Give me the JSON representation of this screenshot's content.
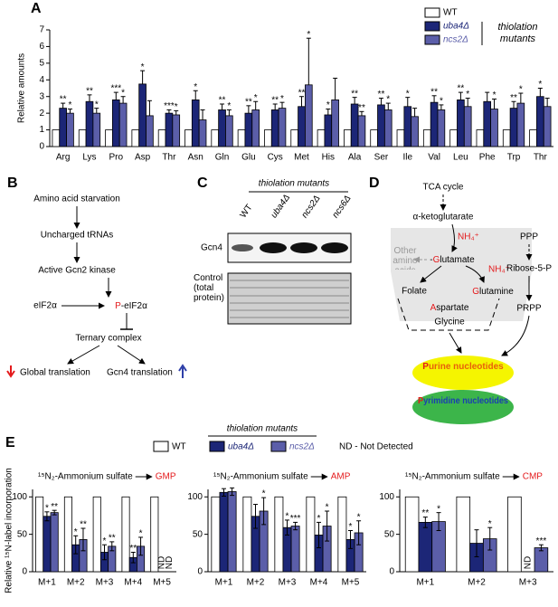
{
  "chart_data": [
    {
      "type": "bar",
      "panel_label": "A",
      "ylabel": "Relative amounts",
      "categories": [
        "Arg",
        "Lys",
        "Pro",
        "Asp",
        "Thr",
        "Asn",
        "Gln",
        "Glu",
        "Cys",
        "Met",
        "His",
        "Ala",
        "Ser",
        "Ile",
        "Val",
        "Leu",
        "Phe",
        "Trp",
        "Thr"
      ],
      "ylim": [
        0,
        7
      ],
      "yticks": [
        0,
        1,
        2,
        3,
        4,
        5,
        6,
        7
      ],
      "legend_group": "thiolation mutants",
      "series": [
        {
          "name": "WT",
          "color": "#ffffff",
          "values": [
            1,
            1,
            1,
            1,
            1,
            1,
            1,
            1,
            1,
            1,
            1,
            1,
            1,
            1,
            1,
            1,
            1,
            1,
            1
          ]
        },
        {
          "name": "uba4Δ",
          "color": "#1c2677",
          "values": [
            2.3,
            2.7,
            2.8,
            3.75,
            2.0,
            2.8,
            2.2,
            2.0,
            2.2,
            2.4,
            1.9,
            2.55,
            2.5,
            2.4,
            2.65,
            2.8,
            2.7,
            2.3,
            3.0
          ],
          "errors": [
            0.3,
            0.4,
            0.45,
            0.8,
            0.2,
            0.55,
            0.35,
            0.45,
            0.35,
            0.6,
            0.35,
            0.4,
            0.4,
            0.55,
            0.4,
            0.45,
            0.55,
            0.4,
            0.5
          ],
          "annotations": [
            "**",
            "**",
            "***",
            "*",
            "***",
            "*",
            "**",
            "**",
            "**",
            "**",
            "*",
            "**",
            "**",
            "*",
            "**",
            "**",
            null,
            "**",
            "*"
          ]
        },
        {
          "name": "ncs2Δ",
          "color": "#5b5ea9",
          "values": [
            2.0,
            2.0,
            2.6,
            1.85,
            1.9,
            1.6,
            1.85,
            2.2,
            2.3,
            3.7,
            2.8,
            1.85,
            2.2,
            1.8,
            2.2,
            2.4,
            2.25,
            2.6,
            2.4
          ],
          "errors": [
            0.25,
            0.3,
            0.4,
            0.9,
            0.25,
            0.6,
            0.35,
            0.5,
            0.35,
            2.8,
            1.3,
            0.25,
            0.4,
            0.5,
            0.3,
            0.5,
            0.6,
            0.6,
            0.5
          ],
          "annotations": [
            "*",
            "*",
            "*",
            null,
            "*",
            null,
            "*",
            "*",
            "*",
            "*",
            null,
            "**",
            "*",
            null,
            "*",
            "*",
            "*",
            "*",
            null
          ]
        }
      ]
    },
    {
      "type": "bar",
      "panel_label": "E",
      "title": "¹⁵N₂-Ammonium sulfate",
      "product": "GMP",
      "ylabel": "Relative ¹⁵N-label incorporation",
      "legend_group": "thiolation mutants",
      "note": "ND - Not Detected",
      "categories": [
        "M+1",
        "M+2",
        "M+3",
        "M+4",
        "M+5"
      ],
      "ylim": [
        0,
        110
      ],
      "yticks": [
        0,
        50,
        100
      ],
      "series": [
        {
          "name": "WT",
          "color": "#ffffff",
          "values": [
            100,
            100,
            100,
            100,
            100
          ]
        },
        {
          "name": "uba4Δ",
          "color": "#1c2677",
          "values": [
            74,
            36,
            26,
            19,
            null
          ],
          "errors": [
            6,
            12,
            10,
            7,
            null
          ],
          "annotations": [
            "*",
            "*",
            "*",
            "**",
            null
          ],
          "value_labels": [
            null,
            null,
            null,
            null,
            "ND"
          ]
        },
        {
          "name": "ncs2Δ",
          "color": "#5b5ea9",
          "values": [
            79,
            43,
            34,
            34,
            null
          ],
          "errors": [
            3,
            15,
            6,
            12,
            null
          ],
          "annotations": [
            "**",
            "**",
            "**",
            "*",
            null
          ],
          "value_labels": [
            null,
            null,
            null,
            null,
            "ND"
          ]
        }
      ]
    },
    {
      "type": "bar",
      "title": "¹⁵N₂-Ammonium sulfate",
      "product": "AMP",
      "categories": [
        "M+1",
        "M+2",
        "M+3",
        "M+4",
        "M+5"
      ],
      "ylim": [
        0,
        110
      ],
      "yticks": [
        0,
        50,
        100
      ],
      "series": [
        {
          "color": "#ffffff",
          "values": [
            100,
            100,
            100,
            100,
            100
          ]
        },
        {
          "color": "#1c2677",
          "values": [
            106,
            74,
            59,
            49,
            43
          ],
          "errors": [
            5,
            16,
            10,
            17,
            12
          ],
          "annotations": [
            null,
            null,
            "*",
            "*",
            "*"
          ]
        },
        {
          "color": "#5b5ea9",
          "values": [
            107,
            81,
            61,
            61,
            52
          ],
          "errors": [
            5,
            18,
            5,
            20,
            16
          ],
          "annotations": [
            null,
            "*",
            "***",
            "*",
            "*"
          ]
        }
      ]
    },
    {
      "type": "bar",
      "title": "¹⁵N₂-Ammonium sulfate",
      "product": "CMP",
      "categories": [
        "M+1",
        "M+2",
        "M+3"
      ],
      "ylim": [
        0,
        110
      ],
      "yticks": [
        0,
        50,
        100
      ],
      "series": [
        {
          "color": "#ffffff",
          "values": [
            100,
            100,
            100
          ]
        },
        {
          "color": "#1c2677",
          "values": [
            66,
            38,
            null
          ],
          "errors": [
            7,
            18,
            null
          ],
          "annotations": [
            "**",
            null,
            null
          ],
          "value_labels": [
            null,
            null,
            "ND"
          ]
        },
        {
          "color": "#5b5ea9",
          "values": [
            67,
            44,
            32
          ],
          "errors": [
            12,
            15,
            4
          ],
          "annotations": [
            "*",
            "*",
            "***"
          ]
        }
      ]
    }
  ],
  "panel_b": {
    "label": "B",
    "starvation": "Amino acid starvation",
    "trnas": "Uncharged tRNAs",
    "kinase": "Active Gcn2 kinase",
    "eif2a": "eIF2α",
    "p_eif2a": {
      "p": "P",
      "rest": "-eIF2α"
    },
    "ternary": "Ternary complex",
    "global": "Global translation",
    "gcn4": "Gcn4 translation"
  },
  "panel_c": {
    "label": "C",
    "group": "thiolation mutants",
    "lanes": [
      "WT",
      "uba4Δ",
      "ncs2Δ",
      "ncs6Δ"
    ],
    "gcn4": "Gcn4",
    "control": "Control (total protein)"
  },
  "panel_d": {
    "label": "D",
    "tca": "TCA cycle",
    "akg": "α-ketoglutarate",
    "nh4": "NH₄⁺",
    "other": "Other amino acids",
    "glutamate": {
      "dash": "-",
      "accent": "G",
      "rest": "lutamate"
    },
    "nh4_2": "NH₄⁺",
    "folate": "Folate",
    "glutamine": {
      "accent": "G",
      "rest": "lutamine"
    },
    "aspartate": {
      "accent": "A",
      "rest": "spartate"
    },
    "glycine": "Glycine",
    "ppp": "PPP",
    "ribose": "Ribose-5-P",
    "prpp": "PRPP",
    "purine": {
      "accent": "P",
      "rest": "urine nucleotides"
    },
    "pyrimidine": {
      "accent": "P",
      "rest": "yrimidine nucleotides"
    }
  }
}
